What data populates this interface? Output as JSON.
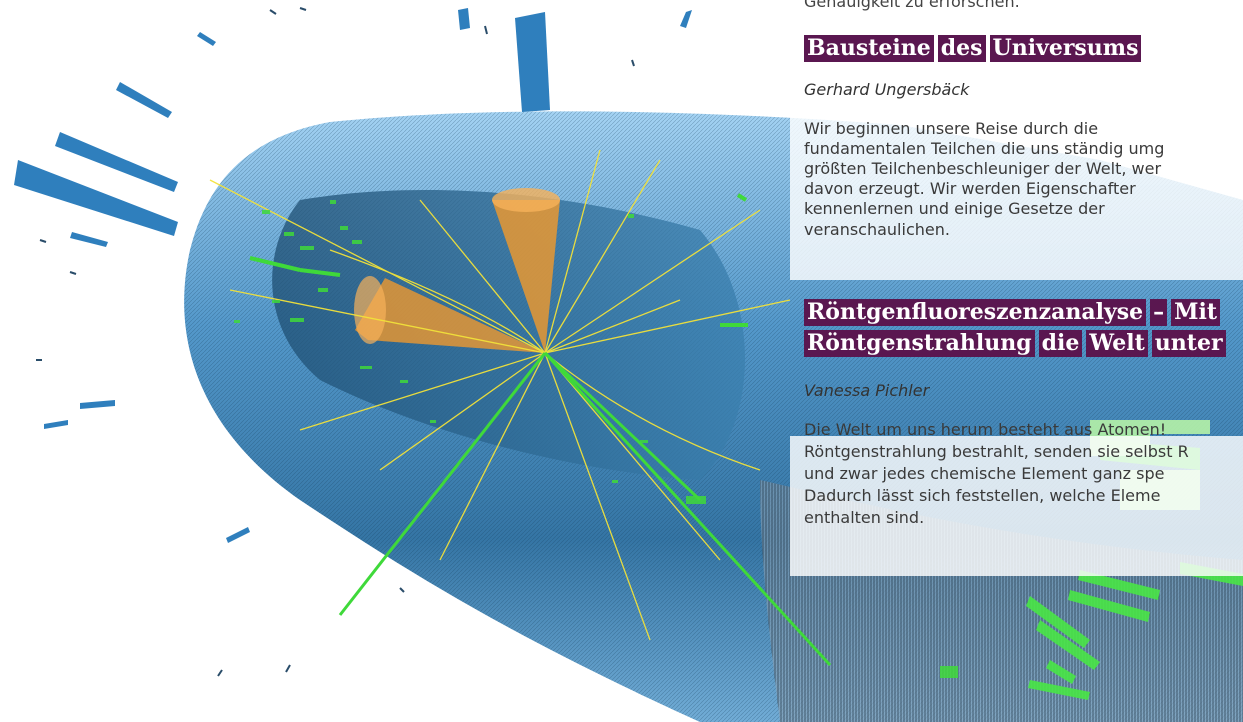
{
  "intro_tail": "Genauigkeit zu erforschen.",
  "articles": [
    {
      "title_words": [
        "Bausteine",
        "des",
        "Universums"
      ],
      "author": "Gerhard Ungersbäck",
      "lines": [
        "Wir   beginnen   unsere   Reise   durch   die",
        "fundamentalen Teilchen die uns ständig umg",
        "größten Teilchenbeschleuniger der Welt, wer",
        "davon   erzeugt.   Wir   werden   Eigenschafter",
        "kennenlernen    und    einige    Gesetze    der",
        "veranschaulichen."
      ]
    },
    {
      "title_line1": [
        "Röntgenfluoreszenzanalyse",
        "–",
        "Mit"
      ],
      "title_line2": [
        "Röntgenstrahlung",
        "die",
        "Welt",
        "unter"
      ],
      "author": "Vanessa Pichler",
      "lines": [
        "Die Welt um uns herum besteht aus Atomen!",
        "Röntgenstrahlung bestrahlt, senden sie selbst R",
        "und  zwar  jedes  chemische  Element  ganz  spe",
        "Dadurch   lässt   sich   feststellen,   welche   Eleme",
        "enthalten sind."
      ]
    }
  ],
  "colors": {
    "heading_bg": "#5a1750",
    "detector_blue": "#3f86c0",
    "track_yellow": "#f2e23a",
    "jet_orange": "#f39a2b",
    "hit_green": "#3fd93a"
  },
  "icons": [
    "particle-collision-event-graphic"
  ]
}
